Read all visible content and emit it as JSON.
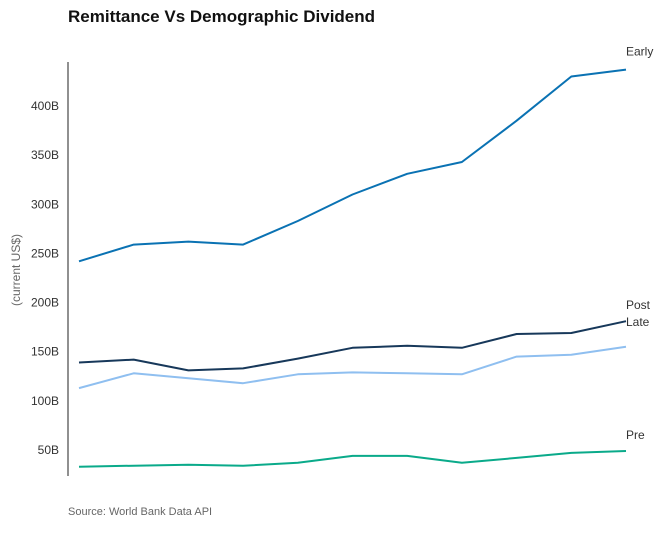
{
  "chart_data": {
    "type": "line",
    "title": "Remittance Vs Demographic Dividend",
    "ylabel": "(current US$)",
    "xlabel": "",
    "source": "Source: World Bank Data API",
    "ylim": [
      25,
      445
    ],
    "yticks": [
      {
        "value": 50,
        "label": "50B"
      },
      {
        "value": 100,
        "label": "100B"
      },
      {
        "value": 150,
        "label": "150B"
      },
      {
        "value": 200,
        "label": "200B"
      },
      {
        "value": 250,
        "label": "250B"
      },
      {
        "value": 300,
        "label": "300B"
      },
      {
        "value": 350,
        "label": "350B"
      },
      {
        "value": 400,
        "label": "400B"
      }
    ],
    "x": [
      1,
      2,
      3,
      4,
      5,
      6,
      7,
      8,
      9,
      10,
      11
    ],
    "grid": false,
    "legend": "direct labels at line ends",
    "series": [
      {
        "name": "Early",
        "color": "#0a72b3",
        "values": [
          242,
          259,
          262,
          259,
          283,
          310,
          331,
          343,
          385,
          430,
          437
        ]
      },
      {
        "name": "Post",
        "color": "#17385a",
        "values": [
          139,
          142,
          131,
          133,
          143,
          154,
          156,
          154,
          168,
          169,
          181
        ]
      },
      {
        "name": "Late",
        "color": "#8fbff0",
        "values": [
          113,
          128,
          123,
          118,
          127,
          129,
          128,
          127,
          145,
          147,
          155
        ]
      },
      {
        "name": "Pre",
        "color": "#0aaa8a",
        "values": [
          33,
          34,
          35,
          34,
          37,
          44,
          44,
          37,
          42,
          47,
          49
        ]
      }
    ]
  }
}
